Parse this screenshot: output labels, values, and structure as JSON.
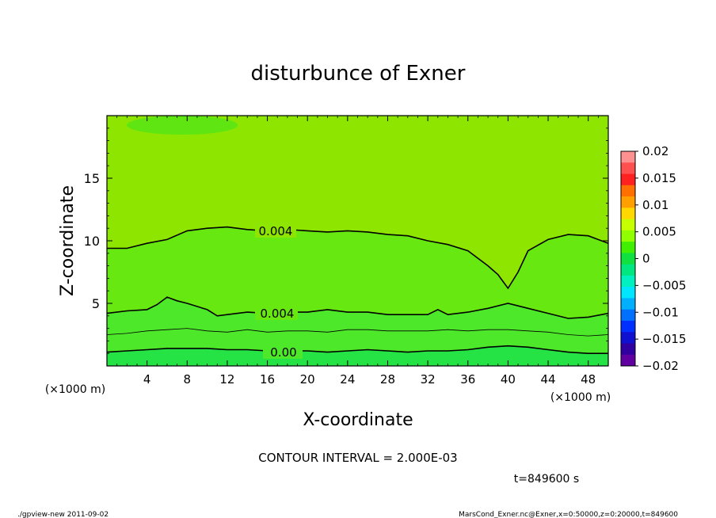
{
  "chart_data": {
    "type": "contour",
    "title": "disturbunce of Exner",
    "xlabel": "X-coordinate",
    "ylabel": "Z-coordinate",
    "x_unit_label": "(×1000 m)",
    "x_unit_label_left": "(×1000 m)",
    "xlim": [
      0,
      50
    ],
    "ylim": [
      0,
      20
    ],
    "x_ticks": [
      4,
      8,
      12,
      16,
      20,
      24,
      28,
      32,
      36,
      40,
      44,
      48
    ],
    "y_ticks": [
      5,
      10,
      15
    ],
    "contour_interval_text": "CONTOUR INTERVAL = 2.000E-03",
    "time_text": "t=849600 s",
    "colorbar": {
      "range": [
        -0.02,
        0.02
      ],
      "labels": [
        "0.02",
        "0.015",
        "0.01",
        "0.005",
        "0",
        "−0.005",
        "−0.01",
        "−0.015",
        "−0.02"
      ],
      "colors": [
        "#ff9090",
        "#ff5050",
        "#ff2020",
        "#ff7000",
        "#ffa000",
        "#ffd800",
        "#c8ff00",
        "#90ff00",
        "#40f000",
        "#10e040",
        "#00e680",
        "#00f0c0",
        "#00e6ff",
        "#00b0ff",
        "#0070ff",
        "#0030ff",
        "#1010d0",
        "#3000a0",
        "#6000a0"
      ]
    },
    "contour_labels": [
      {
        "text": "0.004",
        "level": 0.004
      },
      {
        "text": "0.004",
        "level": 0.004
      },
      {
        "text": "0.00",
        "level": 0.0
      }
    ],
    "upper_contour_0_004": {
      "x": [
        0,
        2,
        4,
        6,
        8,
        10,
        12,
        14,
        16,
        18,
        20,
        22,
        24,
        26,
        28,
        30,
        32,
        34,
        36,
        38,
        39,
        40,
        41,
        42,
        44,
        46,
        48,
        50
      ],
      "z": [
        9.4,
        9.4,
        9.8,
        10.1,
        10.8,
        11.0,
        11.1,
        10.9,
        10.8,
        10.9,
        10.8,
        10.7,
        10.8,
        10.7,
        10.5,
        10.4,
        10.0,
        9.7,
        9.2,
        8.0,
        7.3,
        6.2,
        7.5,
        9.2,
        10.1,
        10.5,
        10.4,
        9.8
      ]
    },
    "lower_contour_0_004": {
      "x": [
        0,
        2,
        4,
        5,
        6,
        7,
        8,
        10,
        11,
        12,
        14,
        16,
        18,
        20,
        22,
        24,
        26,
        28,
        30,
        32,
        33,
        34,
        36,
        38,
        40,
        42,
        44,
        46,
        48,
        50
      ],
      "z": [
        4.2,
        4.4,
        4.5,
        4.9,
        5.5,
        5.2,
        5.0,
        4.5,
        4.0,
        4.1,
        4.3,
        4.2,
        4.3,
        4.3,
        4.5,
        4.3,
        4.3,
        4.1,
        4.1,
        4.1,
        4.5,
        4.1,
        4.3,
        4.6,
        5.0,
        4.6,
        4.2,
        3.8,
        3.9,
        4.2
      ]
    },
    "thin_contour_0_002": {
      "x": [
        0,
        2,
        4,
        6,
        8,
        10,
        12,
        14,
        16,
        18,
        20,
        22,
        24,
        26,
        28,
        30,
        32,
        34,
        36,
        38,
        40,
        42,
        44,
        46,
        48,
        50
      ],
      "z": [
        2.5,
        2.6,
        2.8,
        2.9,
        3.0,
        2.8,
        2.7,
        2.9,
        2.7,
        2.8,
        2.8,
        2.7,
        2.9,
        2.9,
        2.8,
        2.8,
        2.8,
        2.9,
        2.8,
        2.9,
        2.9,
        2.8,
        2.7,
        2.5,
        2.4,
        2.5
      ]
    },
    "zero_contour_0_00": {
      "x": [
        0,
        2,
        4,
        6,
        8,
        10,
        12,
        14,
        16,
        18,
        20,
        22,
        24,
        26,
        28,
        30,
        32,
        34,
        36,
        38,
        40,
        42,
        44,
        46,
        48,
        50
      ],
      "z": [
        1.1,
        1.2,
        1.3,
        1.4,
        1.4,
        1.4,
        1.3,
        1.3,
        1.2,
        1.2,
        1.2,
        1.1,
        1.2,
        1.3,
        1.2,
        1.1,
        1.2,
        1.2,
        1.3,
        1.5,
        1.6,
        1.5,
        1.3,
        1.1,
        1.0,
        1.0
      ]
    }
  },
  "footer": {
    "left": "./gpview-new   2011-09-02",
    "right": "MarsCond_Exner.nc@Exner,x=0:50000,z=0:20000,t=849600"
  }
}
